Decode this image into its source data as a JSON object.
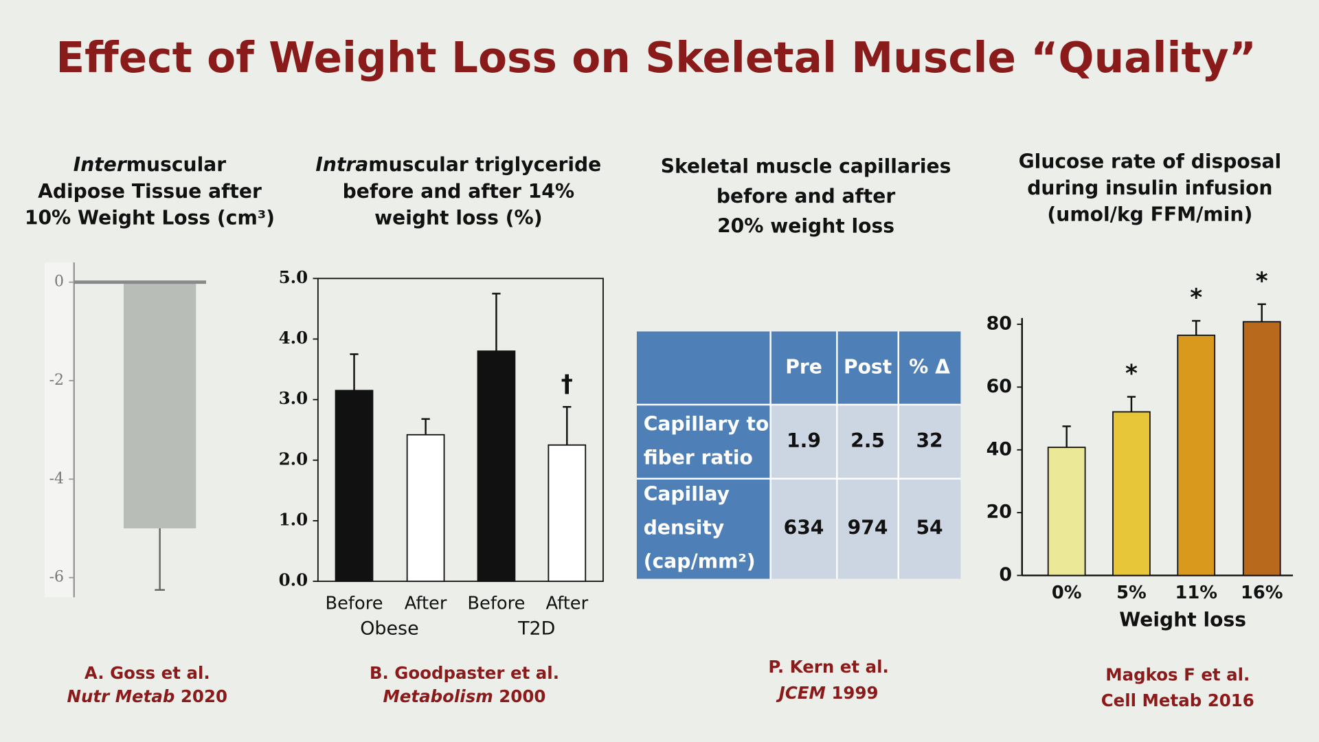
{
  "title": "Effect of Weight Loss on Skeletal Muscle “Quality”",
  "chart_data": [
    {
      "type": "bar",
      "title": [
        [
          {
            "text": "Inter",
            "italic": true
          },
          "muscular"
        ],
        [
          "Adipose Tissue after"
        ],
        [
          "10% Weight Loss (cm³)"
        ]
      ],
      "categories": [
        null
      ],
      "values": [
        -5.0
      ],
      "errors": [
        1.25
      ],
      "color": "#b9bdb7",
      "ylim": [
        -6.4,
        0.4
      ],
      "yticks": [
        0,
        -2,
        -4,
        -6
      ],
      "source": [
        [
          "A. Goss et al."
        ],
        [
          {
            "text": "Nutr Metab",
            "italic": true
          },
          " 2020"
        ]
      ]
    },
    {
      "type": "bar",
      "title": [
        [
          {
            "text": "Intra",
            "italic": true
          },
          "muscular triglyceride"
        ],
        [
          "before and after 14%"
        ],
        [
          "weight loss (%)"
        ]
      ],
      "categories": [
        "Before",
        "After",
        "Before",
        "After"
      ],
      "group_labels": [
        "Obese",
        "T2D"
      ],
      "values": [
        3.15,
        2.42,
        3.8,
        2.25
      ],
      "errors": [
        0.6,
        0.26,
        0.95,
        0.63
      ],
      "colors": [
        "#111111",
        "#ffffff",
        "#111111",
        "#ffffff"
      ],
      "annotations": [
        null,
        null,
        null,
        "†"
      ],
      "ylim": [
        0,
        5
      ],
      "yticks": [
        {
          "value": 0,
          "label": "0.0"
        },
        {
          "value": 1,
          "label": "1.0"
        },
        {
          "value": 2,
          "label": "2.0"
        },
        {
          "value": 3,
          "label": "3.0"
        },
        {
          "value": 4,
          "label": "4.0"
        },
        {
          "value": 5,
          "label": "5.0"
        }
      ],
      "source": [
        [
          "B. Goodpaster et al."
        ],
        [
          {
            "text": "Metabolism",
            "italic": true
          },
          " 2000"
        ]
      ]
    },
    {
      "type": "bar",
      "title": [
        [
          "Glucose rate of disposal"
        ],
        [
          "during insulin infusion"
        ],
        [
          "(umol/kg FFM/min)"
        ]
      ],
      "categories": [
        "0%",
        "5%",
        "11%",
        "16%"
      ],
      "x_label": "Weight loss",
      "values": [
        40.8,
        52.1,
        76.5,
        80.8
      ],
      "errors": [
        6.7,
        4.8,
        4.6,
        5.6
      ],
      "colors": [
        "#ebe897",
        "#e8c63a",
        "#d9991c",
        "#b8691b"
      ],
      "annotations": [
        null,
        "*",
        "*",
        "*"
      ],
      "ylim": [
        0,
        82
      ],
      "yticks": [
        0,
        20,
        40,
        60,
        80
      ],
      "source": [
        [
          "Magkos F et al."
        ],
        [
          "Cell Metab  2016"
        ]
      ]
    }
  ],
  "table": {
    "title": [
      [
        "Skeletal muscle capillaries"
      ],
      [
        "before and after"
      ],
      [
        "20% weight loss"
      ]
    ],
    "header": [
      "Pre",
      "Post",
      "% Δ"
    ],
    "rows": [
      {
        "label": [
          "Capillary to",
          "fiber ratio"
        ],
        "values": [
          1.9,
          2.5,
          32
        ]
      },
      {
        "label": [
          "Capillay",
          "density",
          "(cap/mm²)"
        ],
        "values": [
          634,
          974,
          54
        ]
      }
    ],
    "source": [
      [
        "P. Kern et al."
      ],
      [
        {
          "text": "JCEM",
          "italic": true
        },
        " 1999"
      ]
    ]
  }
}
